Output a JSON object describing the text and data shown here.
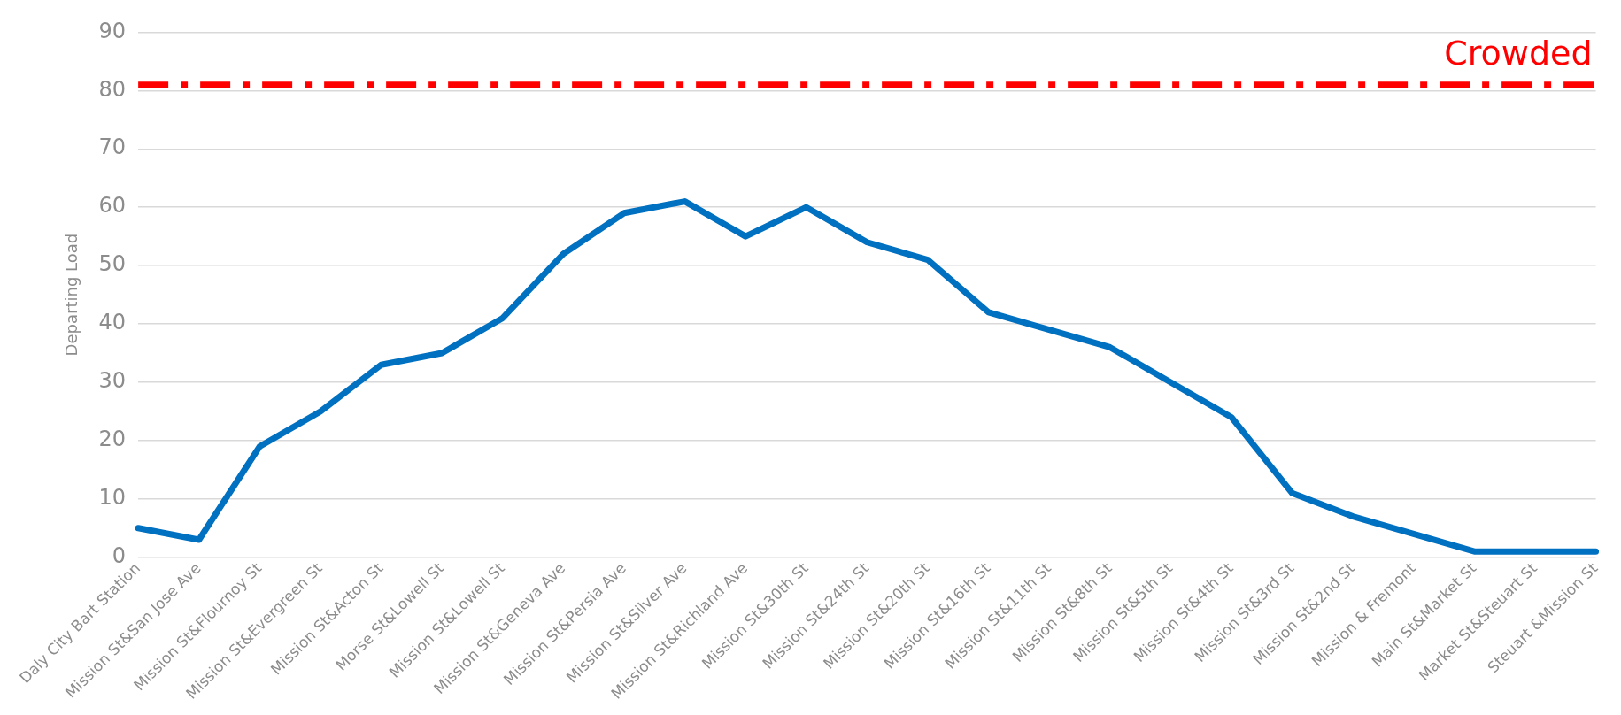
{
  "chart_data": {
    "type": "line",
    "ylabel": "Departing Load",
    "categories": [
      "Daly City Bart Station",
      "Mission St&San Jose Ave",
      "Mission St&Flournoy St",
      "Mission St&Evergreen St",
      "Mission St&Acton St",
      "Morse St&Lowell St",
      "Mission St&Lowell St",
      "Mission St&Geneva Ave",
      "Mission St&Persia Ave",
      "Mission St&Silver Ave",
      "Mission St&Richland Ave",
      "Mission St&30th St",
      "Mission St&24th St",
      "Mission St&20th St",
      "Mission St&16th St",
      "Mission St&11th St",
      "Mission St&8th St",
      "Mission St&5th St",
      "Mission St&4th St",
      "Mission St&3rd St",
      "Mission St&2nd St",
      "Mission & Fremont",
      "Main St&Market St",
      "Market St&Steuart St",
      "Steuart &Mission St"
    ],
    "series": [
      {
        "color": "#0070c0",
        "values": [
          5,
          3,
          19,
          25,
          33,
          35,
          41,
          52,
          59,
          61,
          55,
          60,
          54,
          51,
          42,
          39,
          36,
          30,
          24,
          11,
          7,
          4,
          1,
          1,
          1
        ]
      }
    ],
    "ylim": [
      0,
      90
    ],
    "yticks": [
      0,
      10,
      20,
      30,
      40,
      50,
      60,
      70,
      80,
      90
    ],
    "grid": "y",
    "legend": false,
    "marker": "none",
    "line_style": "solid",
    "ref_lines": [
      {
        "axis": "y",
        "value": 81,
        "label": "Crowded",
        "color": "#ff0000",
        "line_style": "dashed"
      }
    ]
  }
}
